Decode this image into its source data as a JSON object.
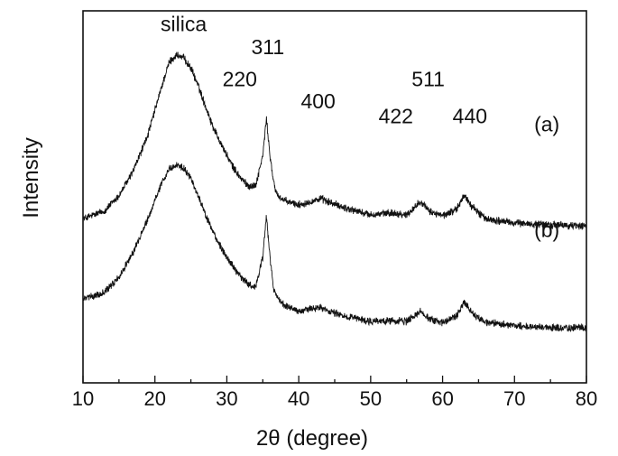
{
  "chart_data": {
    "type": "line",
    "xlabel": "2θ (degree)",
    "ylabel": "Intensity",
    "xlim": [
      10,
      80
    ],
    "x_ticks": [
      10,
      20,
      30,
      40,
      50,
      60,
      70,
      80
    ],
    "y_ticks_labeled": false,
    "grid": false,
    "legend": "none",
    "series": [
      {
        "name": "(a)",
        "baseline": 0.86,
        "noise": 0.03,
        "x": [
          10,
          13,
          15,
          17,
          19,
          21,
          22,
          23,
          24,
          25,
          26,
          27,
          28,
          29,
          30,
          31,
          32,
          33,
          34,
          35,
          35.5,
          36,
          36.5,
          37,
          38,
          40,
          43,
          46,
          50,
          53,
          55,
          57,
          58,
          60,
          62,
          63,
          64,
          66,
          70,
          75,
          80
        ],
        "y": [
          1.62,
          1.7,
          1.85,
          2.1,
          2.45,
          2.95,
          3.18,
          3.25,
          3.22,
          3.12,
          2.95,
          2.75,
          2.55,
          2.4,
          2.25,
          2.12,
          2.02,
          1.95,
          1.95,
          2.25,
          2.62,
          2.25,
          1.98,
          1.86,
          1.8,
          1.76,
          1.82,
          1.74,
          1.66,
          1.68,
          1.66,
          1.8,
          1.7,
          1.65,
          1.72,
          1.86,
          1.75,
          1.62,
          1.58,
          1.56,
          1.55
        ]
      },
      {
        "name": "(b)",
        "baseline": 0.0,
        "noise": 0.028,
        "x": [
          10,
          13,
          15,
          17,
          19,
          21,
          22,
          23,
          24,
          25,
          26,
          27,
          28,
          29,
          30,
          31,
          32,
          33,
          34,
          35,
          35.5,
          36,
          36.5,
          37,
          38,
          40,
          43,
          46,
          50,
          53,
          55,
          57,
          58,
          60,
          62,
          63,
          64,
          66,
          70,
          75,
          80
        ],
        "y": [
          1.68,
          1.75,
          1.9,
          2.15,
          2.48,
          2.85,
          2.98,
          3.02,
          2.98,
          2.88,
          2.72,
          2.52,
          2.36,
          2.22,
          2.1,
          1.99,
          1.9,
          1.83,
          1.8,
          2.1,
          2.5,
          2.1,
          1.78,
          1.7,
          1.62,
          1.56,
          1.6,
          1.52,
          1.46,
          1.47,
          1.46,
          1.56,
          1.49,
          1.45,
          1.52,
          1.66,
          1.55,
          1.45,
          1.42,
          1.4,
          1.4
        ]
      }
    ],
    "ylim": [
      0.85,
      4.55
    ],
    "annotations": [
      {
        "text": "silica",
        "x": 24.0,
        "y": 4.35
      },
      {
        "text": "311",
        "x": 35.7,
        "y": 4.12
      },
      {
        "text": "220",
        "x": 31.8,
        "y": 3.8
      },
      {
        "text": "400",
        "x": 42.7,
        "y": 3.58
      },
      {
        "text": "511",
        "x": 58.0,
        "y": 3.8
      },
      {
        "text": "422",
        "x": 53.5,
        "y": 3.43
      },
      {
        "text": "440",
        "x": 63.8,
        "y": 3.43
      },
      {
        "text": "(a)",
        "x": 74.5,
        "y": 3.35
      },
      {
        "text": "(b)",
        "x": 74.5,
        "y": 2.3
      }
    ]
  }
}
